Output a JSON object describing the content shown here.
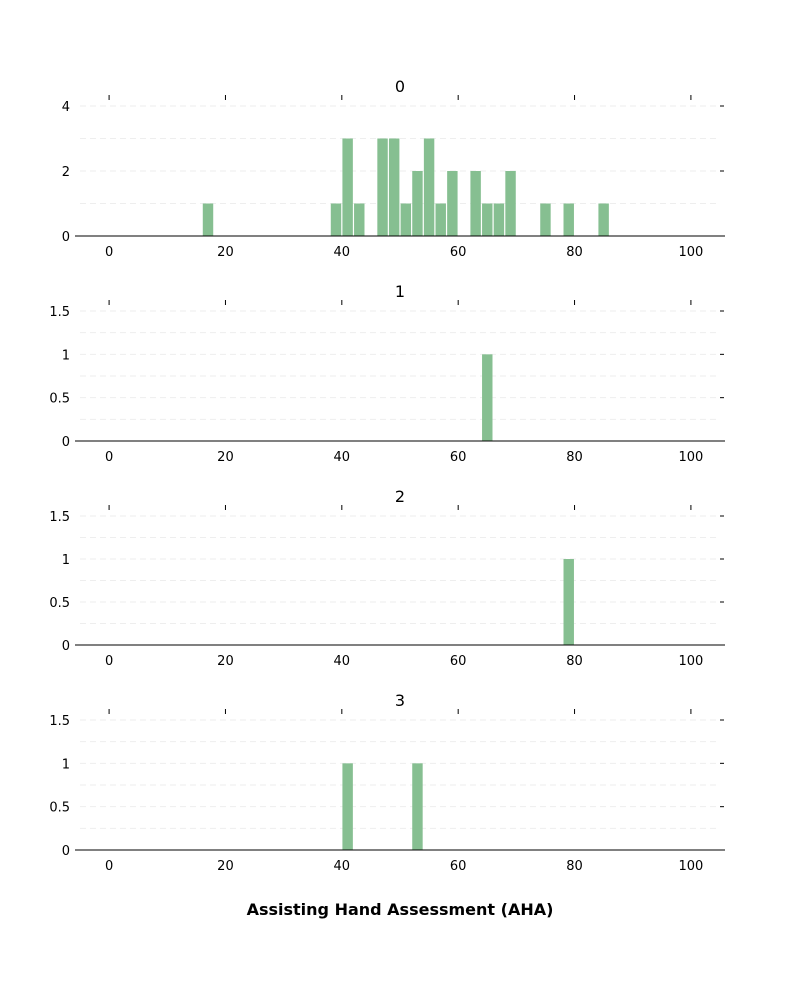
{
  "figure": {
    "xlabel": "Assisting Hand Assessment (AHA)",
    "bar_color": "#86bf91",
    "grid_color": "#eeeeee"
  },
  "chart_data": [
    {
      "type": "bar",
      "title": "0",
      "xlim": [
        -5,
        105
      ],
      "ylim": [
        0,
        4
      ],
      "xticks": [
        0,
        20,
        40,
        60,
        80,
        100
      ],
      "yticks": [
        0,
        2,
        4
      ],
      "ytick_labels": [
        "0",
        "2",
        "4"
      ],
      "grid": true,
      "bin_width": 2,
      "bins": [
        {
          "x": 17,
          "count": 1
        },
        {
          "x": 39,
          "count": 1
        },
        {
          "x": 41,
          "count": 3
        },
        {
          "x": 43,
          "count": 1
        },
        {
          "x": 47,
          "count": 3
        },
        {
          "x": 49,
          "count": 3
        },
        {
          "x": 51,
          "count": 1
        },
        {
          "x": 53,
          "count": 2
        },
        {
          "x": 55,
          "count": 3
        },
        {
          "x": 57,
          "count": 1
        },
        {
          "x": 59,
          "count": 2
        },
        {
          "x": 63,
          "count": 2
        },
        {
          "x": 65,
          "count": 1
        },
        {
          "x": 67,
          "count": 1
        },
        {
          "x": 69,
          "count": 2
        },
        {
          "x": 75,
          "count": 1
        },
        {
          "x": 79,
          "count": 1
        },
        {
          "x": 85,
          "count": 1
        }
      ]
    },
    {
      "type": "bar",
      "title": "1",
      "xlim": [
        -5,
        105
      ],
      "ylim": [
        0,
        1.5
      ],
      "xticks": [
        0,
        20,
        40,
        60,
        80,
        100
      ],
      "yticks": [
        0,
        0.5,
        1,
        1.5
      ],
      "ytick_labels": [
        "0",
        "0.5",
        "1",
        "1.5"
      ],
      "grid": true,
      "bin_width": 2,
      "bins": [
        {
          "x": 65,
          "count": 1
        }
      ]
    },
    {
      "type": "bar",
      "title": "2",
      "xlim": [
        -5,
        105
      ],
      "ylim": [
        0,
        1.5
      ],
      "xticks": [
        0,
        20,
        40,
        60,
        80,
        100
      ],
      "yticks": [
        0,
        0.5,
        1,
        1.5
      ],
      "ytick_labels": [
        "0",
        "0.5",
        "1",
        "1.5"
      ],
      "grid": true,
      "bin_width": 2,
      "bins": [
        {
          "x": 79,
          "count": 1
        }
      ]
    },
    {
      "type": "bar",
      "title": "3",
      "xlim": [
        -5,
        105
      ],
      "ylim": [
        0,
        1.5
      ],
      "xticks": [
        0,
        20,
        40,
        60,
        80,
        100
      ],
      "yticks": [
        0,
        0.5,
        1,
        1.5
      ],
      "ytick_labels": [
        "0",
        "0.5",
        "1",
        "1.5"
      ],
      "grid": true,
      "bin_width": 2,
      "bins": [
        {
          "x": 41,
          "count": 1
        },
        {
          "x": 53,
          "count": 1
        }
      ]
    }
  ]
}
